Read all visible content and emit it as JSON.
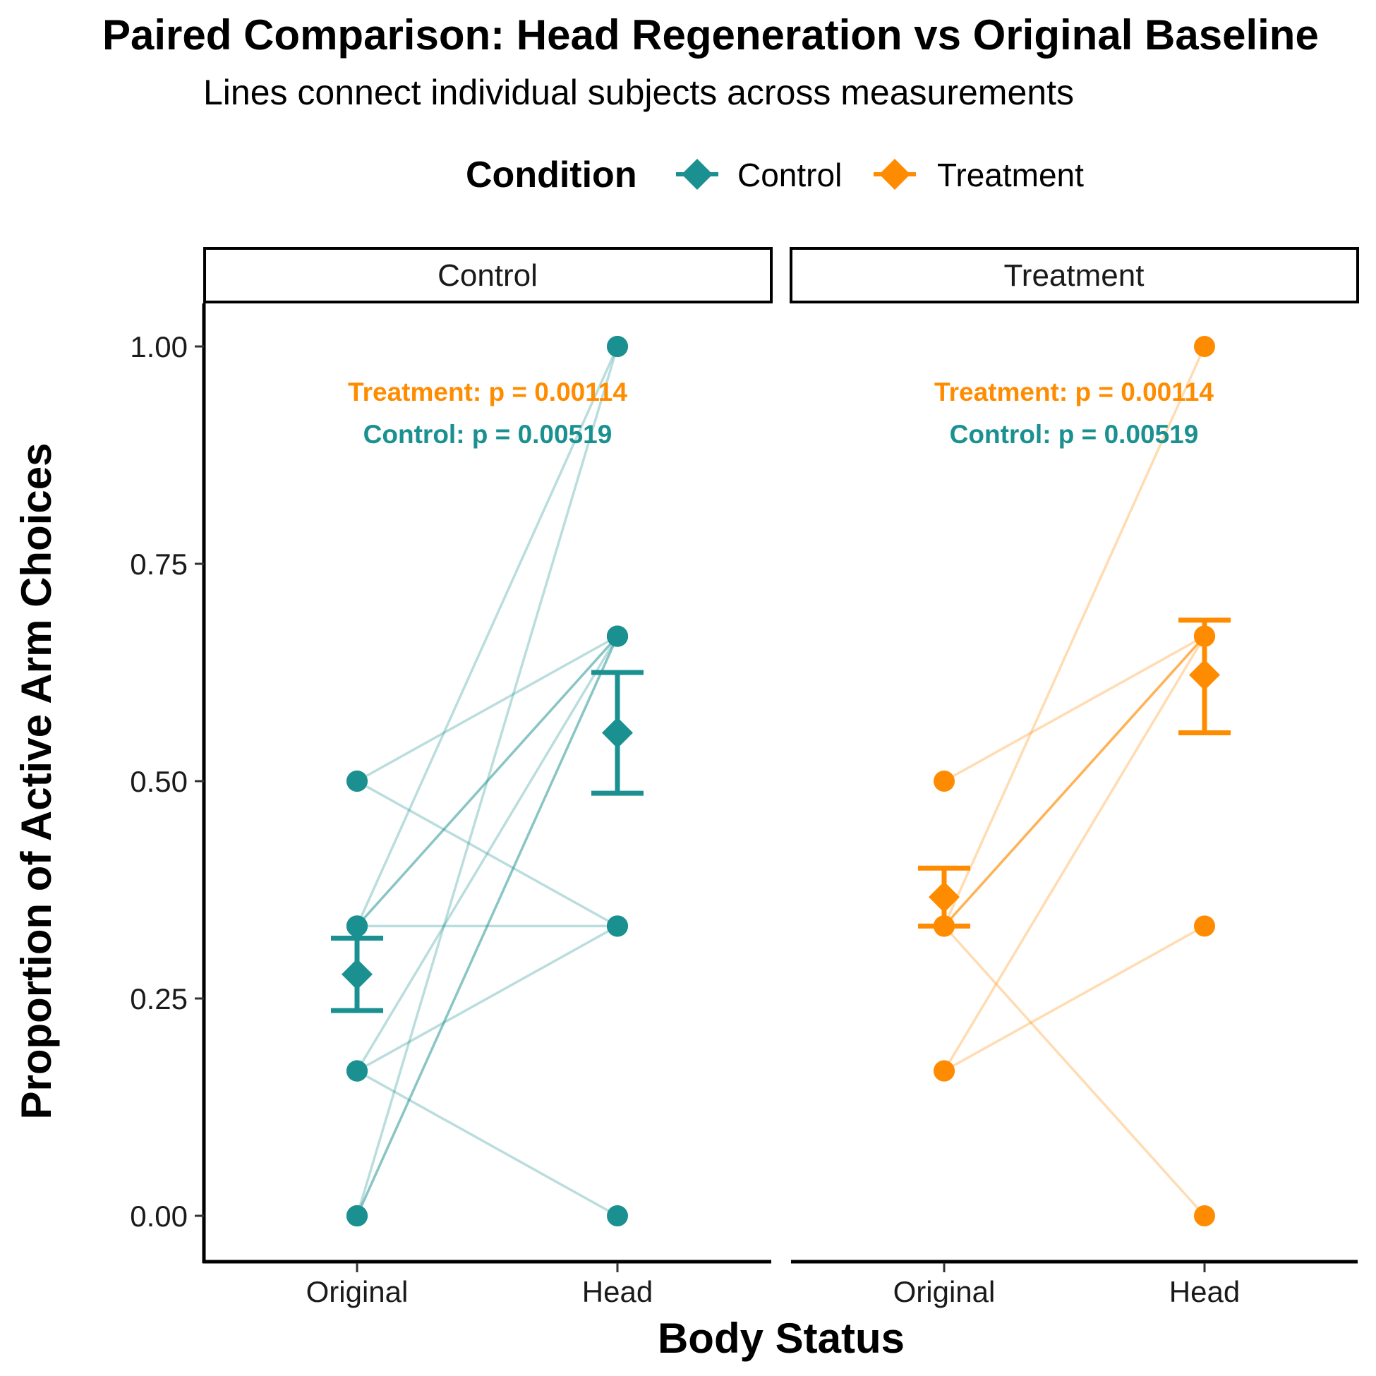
{
  "title": "Paired Comparison: Head Regeneration vs Original Baseline",
  "subtitle": "Lines connect individual subjects across measurements",
  "colors": {
    "Control": "#1a9090",
    "Treatment": "#ff8c00"
  },
  "legend": {
    "title": "Condition",
    "items": [
      "Control",
      "Treatment"
    ]
  },
  "chart_data": {
    "type": "line",
    "xlabel": "Body Status",
    "ylabel": "Proportion of Active Arm Choices",
    "categories": [
      "Original",
      "Head"
    ],
    "ylim": [
      -0.05,
      1.05
    ],
    "yticks": [
      "0.00",
      "0.25",
      "0.50",
      "0.75",
      "1.00"
    ],
    "grid": false,
    "legend_position": "top",
    "facets": [
      {
        "name": "Control",
        "subjects": [
          [
            0.5,
            0.6667
          ],
          [
            0.5,
            0.3333
          ],
          [
            0.3333,
            0.6667
          ],
          [
            0.3333,
            0.6667
          ],
          [
            0.3333,
            0.3333
          ],
          [
            0.3333,
            1.0
          ],
          [
            0.1667,
            0.6667
          ],
          [
            0.1667,
            0.3333
          ],
          [
            0.1667,
            0.0
          ],
          [
            0.0,
            1.0
          ],
          [
            0.0,
            0.6667
          ],
          [
            0.0,
            0.6667
          ]
        ],
        "mean": [
          0.2778,
          0.5556
        ],
        "se_low": [
          0.2361,
          0.4861
        ],
        "se_high": [
          0.3194,
          0.625
        ],
        "annotations": [
          "Treatment: p = 0.00114",
          "Control: p = 0.00519"
        ]
      },
      {
        "name": "Treatment",
        "subjects": [
          [
            0.5,
            0.6667
          ],
          [
            0.3333,
            0.6667
          ],
          [
            0.3333,
            0.6667
          ],
          [
            0.3333,
            0.6667
          ],
          [
            0.3333,
            1.0
          ],
          [
            0.3333,
            0.0
          ],
          [
            0.1667,
            0.6667
          ],
          [
            0.1667,
            0.3333
          ]
        ],
        "mean": [
          0.3667,
          0.6222
        ],
        "se_low": [
          0.3333,
          0.5556
        ],
        "se_high": [
          0.4,
          0.6852
        ],
        "annotations": [
          "Treatment: p = 0.00114",
          "Control: p = 0.00519"
        ]
      }
    ]
  }
}
